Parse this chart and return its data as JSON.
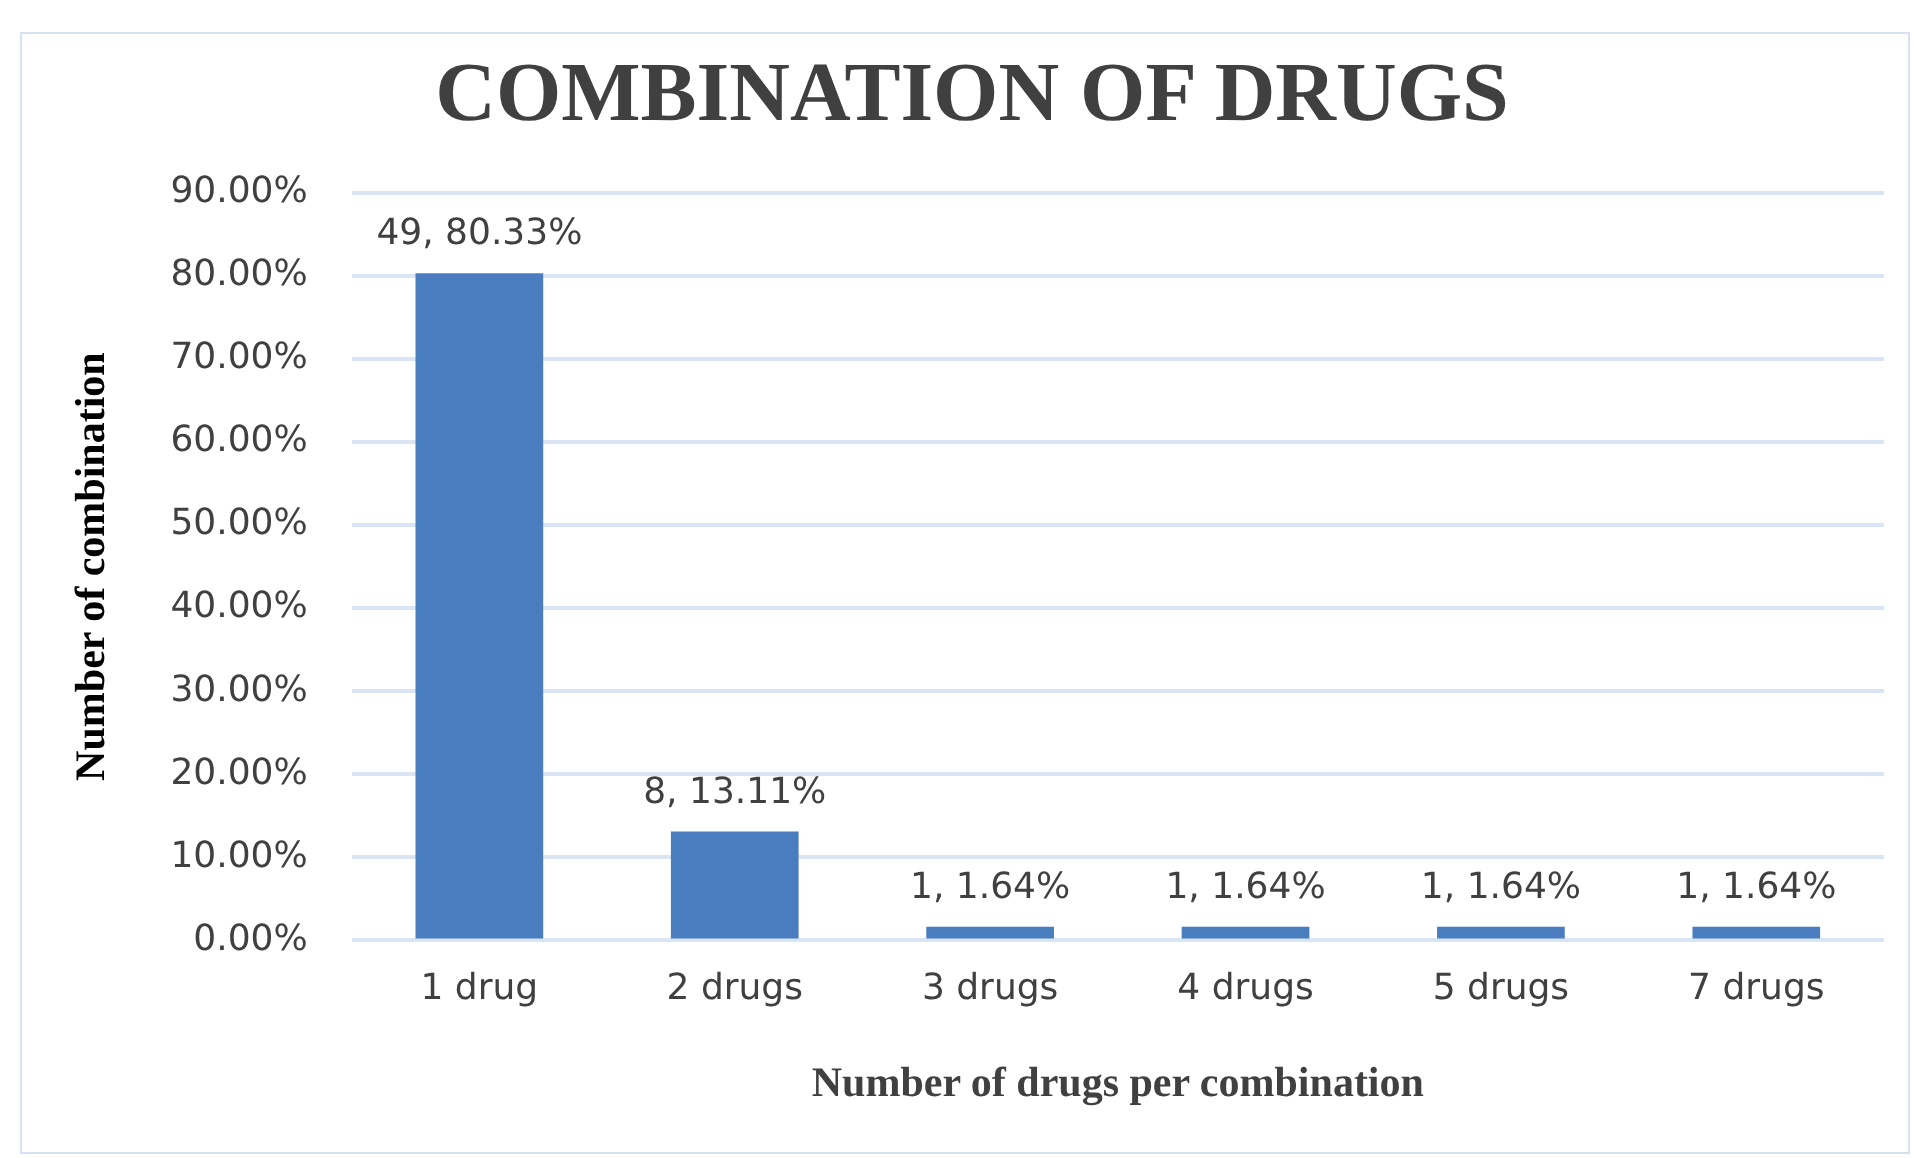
{
  "chart_data": {
    "type": "bar",
    "title": "COMBINATION OF DRUGS",
    "xlabel": "Number of drugs per combination",
    "ylabel": "Number of combination",
    "categories": [
      "1 drug",
      "2 drugs",
      "3 drugs",
      "4 drugs",
      "5 drugs",
      "7 drugs"
    ],
    "values": [
      80.33,
      13.11,
      1.64,
      1.64,
      1.64,
      1.64
    ],
    "value_labels": [
      "49, 80.33%",
      "8, 13.11%",
      "1, 1.64%",
      "1, 1.64%",
      "1, 1.64%",
      "1, 1.64%"
    ],
    "color": "#4a7cc0",
    "ylim": [
      0,
      90
    ],
    "yticks": [
      {
        "value": 0,
        "label": "0.00%"
      },
      {
        "value": 10,
        "label": "10.00%"
      },
      {
        "value": 20,
        "label": "20.00%"
      },
      {
        "value": 30,
        "label": "30.00%"
      },
      {
        "value": 40,
        "label": "40.00%"
      },
      {
        "value": 50,
        "label": "50.00%"
      },
      {
        "value": 60,
        "label": "60.00%"
      },
      {
        "value": 70,
        "label": "70.00%"
      },
      {
        "value": 80,
        "label": "80.00%"
      },
      {
        "value": 90,
        "label": "90.00%"
      }
    ],
    "grid": "y",
    "legend": false
  }
}
